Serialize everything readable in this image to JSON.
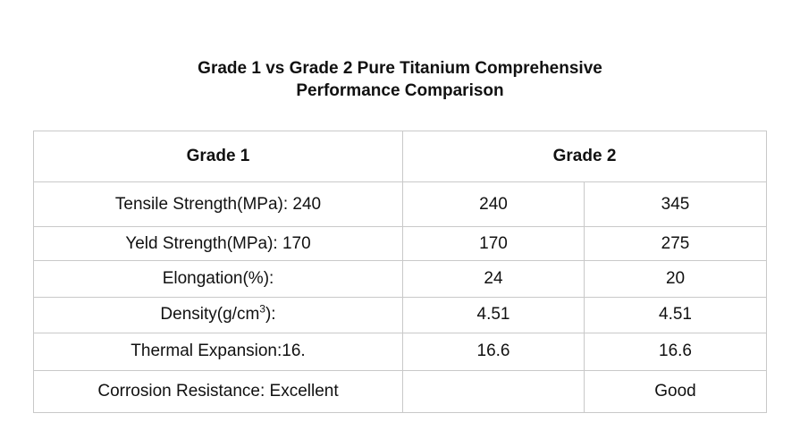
{
  "title": {
    "line1": "Grade 1 vs Grade 2 Pure Titanium Comprehensive",
    "line2": "Performance Comparison"
  },
  "header": {
    "col1": "Grade 1",
    "col2": "Grade 2"
  },
  "rows": [
    {
      "label": "Tensile Strength(MPa): 240",
      "v1": "240",
      "v2": "345"
    },
    {
      "label": "Yeld Strength(MPa): 170",
      "v1": "170",
      "v2": "275"
    },
    {
      "label": "Elongation(%):",
      "v1": "24",
      "v2": "20"
    },
    {
      "label_main": "Density(g/cm",
      "label_sup": "3",
      "label_tail": "):",
      "v1": "4.51",
      "v2": "4.51"
    },
    {
      "label": "Thermal Expansion:16.",
      "v1": "16.6",
      "v2": "16.6"
    },
    {
      "label": "Corrosion Resistance: Excellent",
      "v1": "",
      "v2": "Good"
    }
  ]
}
